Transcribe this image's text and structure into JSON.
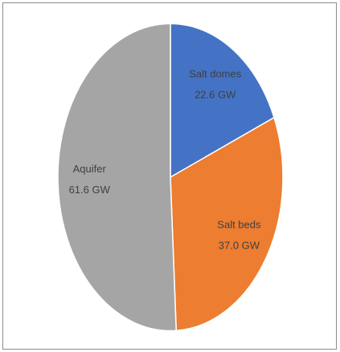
{
  "chart_data": {
    "type": "pie",
    "categories": [
      "Salt domes",
      "Salt beds",
      "Aquifer"
    ],
    "values": [
      22.6,
      37.0,
      61.6
    ],
    "value_labels": [
      "22.6 GW",
      "37.0 GW",
      "61.6 GW"
    ],
    "colors": [
      "#4472c4",
      "#ed7d31",
      "#a5a5a5"
    ]
  }
}
